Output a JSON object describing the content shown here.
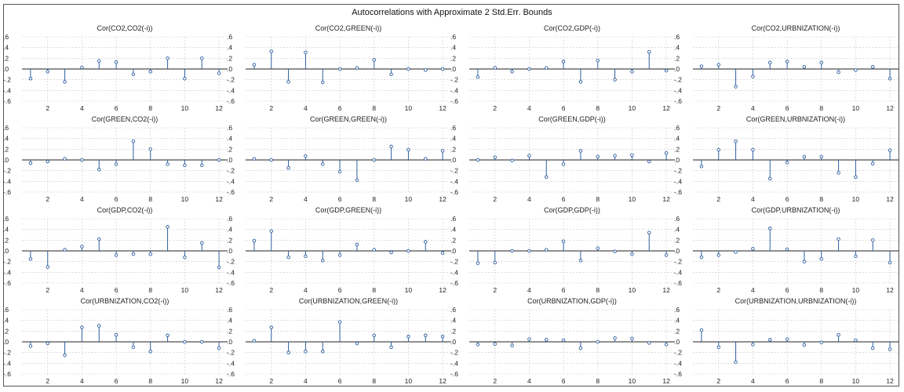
{
  "title": "Autocorrelations with Approximate 2 Std.Err. Bounds",
  "colors": {
    "stem": "#2f5f9e",
    "marker": "#2f5f9e",
    "zero": "#222222",
    "grid": "#c8c8c8",
    "text": "#222222"
  },
  "chart_data": [
    {
      "type": "stem",
      "title": "Cor(CO2,CO2(-i))",
      "x": [
        1,
        2,
        3,
        4,
        5,
        6,
        7,
        8,
        9,
        10,
        11,
        12
      ],
      "values": [
        -0.18,
        -0.05,
        -0.24,
        0.03,
        0.15,
        0.13,
        -0.1,
        -0.05,
        0.2,
        -0.18,
        0.2,
        -0.08
      ],
      "ylim": [
        -0.6,
        0.6
      ],
      "yticks": [
        ".6",
        ".4",
        ".2",
        ".0",
        "-.2",
        "-.4",
        "-.6"
      ],
      "xticks": [
        2,
        4,
        6,
        8,
        10,
        12
      ]
    },
    {
      "type": "stem",
      "title": "Cor(CO2,GREEN(-i))",
      "x": [
        1,
        2,
        3,
        4,
        5,
        6,
        7,
        8,
        9,
        10,
        11,
        12
      ],
      "values": [
        0.08,
        0.33,
        -0.24,
        0.31,
        -0.25,
        0.0,
        0.02,
        0.17,
        -0.1,
        0.0,
        -0.02,
        0.0
      ],
      "ylim": [
        -0.6,
        0.6
      ],
      "yticks": [
        ".6",
        ".4",
        ".2",
        ".0",
        "-.2",
        "-.4",
        "-.6"
      ],
      "xticks": [
        2,
        4,
        6,
        8,
        10,
        12
      ]
    },
    {
      "type": "stem",
      "title": "Cor(CO2,GDP(-i))",
      "x": [
        1,
        2,
        3,
        4,
        5,
        6,
        7,
        8,
        9,
        10,
        11,
        12
      ],
      "values": [
        -0.15,
        0.02,
        -0.05,
        0.0,
        0.02,
        0.14,
        -0.24,
        0.16,
        -0.2,
        -0.05,
        0.32,
        -0.03
      ],
      "ylim": [
        -0.6,
        0.6
      ],
      "yticks": [
        ".6",
        ".4",
        ".2",
        ".0",
        "-.2",
        "-.4",
        "-.6"
      ],
      "xticks": [
        2,
        4,
        6,
        8,
        10,
        12
      ]
    },
    {
      "type": "stem",
      "title": "Cor(CO2,URBNIZATION(-i))",
      "x": [
        1,
        2,
        3,
        4,
        5,
        6,
        7,
        8,
        9,
        10,
        11,
        12
      ],
      "values": [
        0.05,
        0.08,
        -0.33,
        -0.14,
        0.12,
        0.14,
        0.04,
        0.12,
        -0.06,
        -0.02,
        0.04,
        -0.18
      ],
      "ylim": [
        -0.6,
        0.6
      ],
      "yticks": [
        ".6",
        ".4",
        ".2",
        ".0",
        "-.2",
        "-.4",
        "-.6"
      ],
      "xticks": [
        2,
        4,
        6,
        8,
        10,
        12
      ]
    },
    {
      "type": "stem",
      "title": "Cor(GREEN,CO2(-i))",
      "x": [
        1,
        2,
        3,
        4,
        5,
        6,
        7,
        8,
        9,
        10,
        11,
        12
      ],
      "values": [
        -0.06,
        -0.03,
        0.02,
        0.0,
        -0.18,
        -0.08,
        0.35,
        0.2,
        -0.08,
        -0.1,
        -0.1,
        0.0
      ],
      "ylim": [
        -0.6,
        0.6
      ],
      "yticks": [
        ".6",
        ".4",
        ".2",
        ".0",
        "-.2",
        "-.4",
        "-.6"
      ],
      "xticks": [
        2,
        4,
        6,
        8,
        10,
        12
      ]
    },
    {
      "type": "stem",
      "title": "Cor(GREEN,GREEN(-i))",
      "x": [
        1,
        2,
        3,
        4,
        5,
        6,
        7,
        8,
        9,
        10,
        11,
        12
      ],
      "values": [
        0.02,
        0.0,
        -0.15,
        0.07,
        -0.08,
        -0.22,
        -0.38,
        0.0,
        0.25,
        0.19,
        0.02,
        0.17
      ],
      "ylim": [
        -0.6,
        0.6
      ],
      "yticks": [
        ".6",
        ".4",
        ".2",
        ".0",
        "-.2",
        "-.4",
        "-.6"
      ],
      "xticks": [
        2,
        4,
        6,
        8,
        10,
        12
      ]
    },
    {
      "type": "stem",
      "title": "Cor(GREEN,GDP(-i))",
      "x": [
        1,
        2,
        3,
        4,
        5,
        6,
        7,
        8,
        9,
        10,
        11,
        12
      ],
      "values": [
        0.0,
        0.05,
        -0.01,
        0.08,
        -0.32,
        -0.08,
        0.17,
        0.06,
        0.08,
        0.09,
        -0.03,
        0.13
      ],
      "ylim": [
        -0.6,
        0.6
      ],
      "yticks": [
        ".6",
        ".4",
        ".2",
        ".0",
        "-.2",
        "-.4",
        "-.6"
      ],
      "xticks": [
        2,
        4,
        6,
        8,
        10,
        12
      ]
    },
    {
      "type": "stem",
      "title": "Cor(GREEN,URBNIZATION(-i))",
      "x": [
        1,
        2,
        3,
        4,
        5,
        6,
        7,
        8,
        9,
        10,
        11,
        12
      ],
      "values": [
        -0.12,
        0.19,
        0.35,
        0.19,
        -0.35,
        -0.05,
        0.06,
        0.06,
        -0.24,
        -0.32,
        -0.07,
        0.18
      ],
      "ylim": [
        -0.6,
        0.6
      ],
      "yticks": [
        ".6",
        ".4",
        ".2",
        ".0",
        "-.2",
        "-.4",
        "-.6"
      ],
      "xticks": [
        2,
        4,
        6,
        8,
        10,
        12
      ]
    },
    {
      "type": "stem",
      "title": "Cor(GDP,CO2(-i))",
      "x": [
        1,
        2,
        3,
        4,
        5,
        6,
        7,
        8,
        9,
        10,
        11,
        12
      ],
      "values": [
        -0.15,
        -0.3,
        0.02,
        0.08,
        0.22,
        -0.08,
        -0.06,
        -0.06,
        0.45,
        -0.12,
        0.15,
        -0.31
      ],
      "ylim": [
        -0.6,
        0.6
      ],
      "yticks": [
        ".6",
        ".4",
        ".2",
        ".0",
        "-.2",
        "-.4",
        "-.6"
      ],
      "xticks": [
        2,
        4,
        6,
        8,
        10,
        12
      ]
    },
    {
      "type": "stem",
      "title": "Cor(GDP,GREEN(-i))",
      "x": [
        1,
        2,
        3,
        4,
        5,
        6,
        7,
        8,
        9,
        10,
        11,
        12
      ],
      "values": [
        0.19,
        0.37,
        -0.12,
        -0.1,
        -0.18,
        -0.08,
        0.12,
        0.02,
        -0.03,
        0.0,
        0.17,
        -0.04
      ],
      "ylim": [
        -0.6,
        0.6
      ],
      "yticks": [
        ".6",
        ".4",
        ".2",
        ".0",
        "-.2",
        "-.4",
        "-.6"
      ],
      "xticks": [
        2,
        4,
        6,
        8,
        10,
        12
      ]
    },
    {
      "type": "stem",
      "title": "Cor(GDP,GDP(-i))",
      "x": [
        1,
        2,
        3,
        4,
        5,
        6,
        7,
        8,
        9,
        10,
        11,
        12
      ],
      "values": [
        -0.23,
        -0.22,
        0.0,
        0.0,
        0.02,
        0.18,
        -0.18,
        0.05,
        -0.01,
        -0.06,
        0.34,
        -0.08
      ],
      "ylim": [
        -0.6,
        0.6
      ],
      "yticks": [
        ".6",
        ".4",
        ".2",
        ".0",
        "-.2",
        "-.4",
        "-.6"
      ],
      "xticks": [
        2,
        4,
        6,
        8,
        10,
        12
      ]
    },
    {
      "type": "stem",
      "title": "Cor(GDP,URBNIZATION(-i))",
      "x": [
        1,
        2,
        3,
        4,
        5,
        6,
        7,
        8,
        9,
        10,
        11,
        12
      ],
      "values": [
        -0.12,
        -0.08,
        -0.02,
        0.04,
        0.42,
        0.03,
        -0.2,
        -0.15,
        0.22,
        -0.1,
        0.2,
        -0.22
      ],
      "ylim": [
        -0.6,
        0.6
      ],
      "yticks": [
        ".6",
        ".4",
        ".2",
        ".0",
        "-.2",
        "-.4",
        "-.6"
      ],
      "xticks": [
        2,
        4,
        6,
        8,
        10,
        12
      ]
    },
    {
      "type": "stem",
      "title": "Cor(URBNIZATION,CO2(-i))",
      "x": [
        1,
        2,
        3,
        4,
        5,
        6,
        7,
        8,
        9,
        10,
        11,
        12
      ],
      "values": [
        -0.08,
        -0.03,
        -0.25,
        0.27,
        0.3,
        0.13,
        -0.1,
        -0.18,
        0.12,
        0.0,
        0.0,
        -0.12
      ],
      "ylim": [
        -0.6,
        0.6
      ],
      "yticks": [
        ".6",
        ".4",
        ".2",
        ".0",
        "-.2",
        "-.4",
        "-.6"
      ],
      "xticks": [
        2,
        4,
        6,
        8,
        10,
        12
      ]
    },
    {
      "type": "stem",
      "title": "Cor(URBNIZATION,GREEN(-i))",
      "x": [
        1,
        2,
        3,
        4,
        5,
        6,
        7,
        8,
        9,
        10,
        11,
        12
      ],
      "values": [
        0.02,
        0.27,
        -0.2,
        -0.18,
        -0.18,
        0.37,
        -0.03,
        0.12,
        -0.1,
        0.1,
        0.12,
        0.1
      ],
      "ylim": [
        -0.6,
        0.6
      ],
      "yticks": [
        ".6",
        ".4",
        ".2",
        ".0",
        "-.2",
        "-.4",
        "-.6"
      ],
      "xticks": [
        2,
        4,
        6,
        8,
        10,
        12
      ]
    },
    {
      "type": "stem",
      "title": "Cor(URBNIZATION,GDP(-i))",
      "x": [
        1,
        2,
        3,
        4,
        5,
        6,
        7,
        8,
        9,
        10,
        11,
        12
      ],
      "values": [
        -0.05,
        -0.04,
        -0.07,
        0.05,
        0.04,
        0.03,
        -0.12,
        0.0,
        0.07,
        0.06,
        -0.02,
        -0.05
      ],
      "ylim": [
        -0.6,
        0.6
      ],
      "yticks": [
        ".6",
        ".4",
        ".2",
        ".0",
        "-.2",
        "-.4",
        "-.6"
      ],
      "xticks": [
        2,
        4,
        6,
        8,
        10,
        12
      ]
    },
    {
      "type": "stem",
      "title": "Cor(URBNIZATION,URBNIZATION(-i))",
      "x": [
        1,
        2,
        3,
        4,
        5,
        6,
        7,
        8,
        9,
        10,
        11,
        12
      ],
      "values": [
        0.22,
        -0.1,
        -0.38,
        -0.05,
        0.04,
        0.05,
        -0.06,
        -0.01,
        0.13,
        0.03,
        -0.12,
        -0.14
      ],
      "ylim": [
        -0.6,
        0.6
      ],
      "yticks": [
        ".6",
        ".4",
        ".2",
        ".0",
        "-.2",
        "-.4",
        "-.6"
      ],
      "xticks": [
        2,
        4,
        6,
        8,
        10,
        12
      ]
    }
  ]
}
